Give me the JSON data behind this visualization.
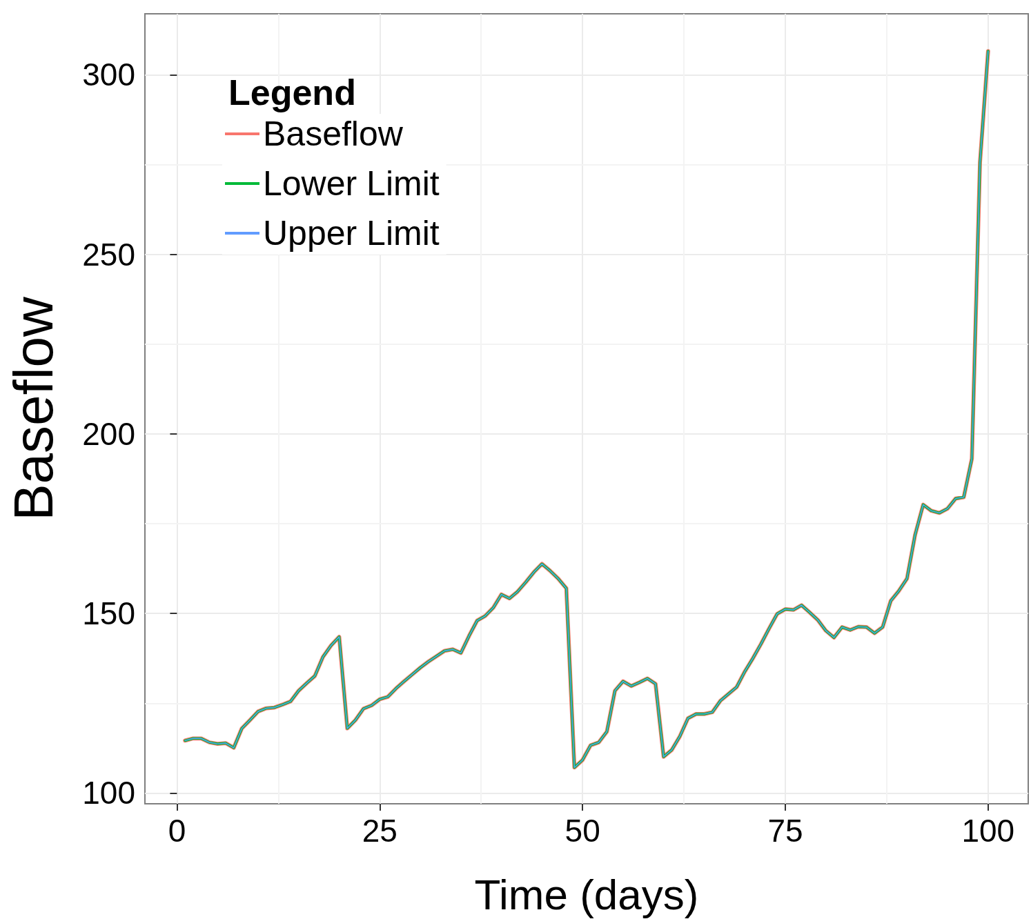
{
  "chart_data": {
    "type": "line",
    "xlabel": "Time (days)",
    "ylabel": "Baseflow",
    "legend_title": "Legend",
    "x": [
      1,
      2,
      3,
      4,
      5,
      6,
      7,
      8,
      9,
      10,
      11,
      12,
      13,
      14,
      15,
      16,
      17,
      18,
      19,
      20,
      21,
      22,
      23,
      24,
      25,
      26,
      27,
      28,
      29,
      30,
      31,
      32,
      33,
      34,
      35,
      36,
      37,
      38,
      39,
      40,
      41,
      42,
      43,
      44,
      45,
      46,
      47,
      48,
      49,
      50,
      51,
      52,
      53,
      54,
      55,
      56,
      57,
      58,
      59,
      60,
      61,
      62,
      63,
      64,
      65,
      66,
      67,
      68,
      69,
      70,
      71,
      72,
      73,
      74,
      75,
      76,
      77,
      78,
      79,
      80,
      81,
      82,
      83,
      84,
      85,
      86,
      87,
      88,
      89,
      90,
      91,
      92,
      93,
      94,
      95,
      96,
      97,
      98,
      99,
      100
    ],
    "series": [
      {
        "name": "Baseflow",
        "color": "#f8766d",
        "values": [
          114.6,
          115.2,
          115.2,
          114.1,
          113.7,
          113.9,
          112.6,
          118.0,
          120.3,
          122.7,
          123.6,
          123.8,
          124.6,
          125.5,
          128.5,
          130.6,
          132.6,
          137.9,
          141.1,
          143.5,
          118.0,
          120.3,
          123.5,
          124.4,
          126.1,
          126.8,
          129.1,
          131.1,
          133.0,
          134.9,
          136.6,
          138.1,
          139.6,
          140.0,
          139.0,
          143.7,
          148.0,
          149.3,
          151.6,
          155.3,
          154.2,
          156.1,
          158.7,
          161.5,
          163.8,
          161.9,
          159.7,
          157.0,
          107.1,
          109.2,
          113.3,
          114.1,
          117.1,
          128.5,
          131.1,
          129.8,
          130.8,
          131.9,
          130.4,
          110.1,
          112.0,
          115.8,
          120.8,
          122.0,
          122.0,
          122.5,
          125.7,
          127.6,
          129.5,
          133.8,
          137.5,
          141.5,
          145.8,
          149.9,
          151.2,
          151.0,
          152.3,
          150.3,
          148.2,
          145.2,
          143.3,
          146.2,
          145.4,
          146.3,
          146.2,
          144.5,
          146.2,
          153.5,
          156.3,
          159.7,
          171.9,
          180.3,
          178.6,
          178.0,
          179.2,
          182.0,
          182.4,
          193.1,
          275.6,
          306.6
        ]
      },
      {
        "name": "Lower Limit",
        "color": "#00ba38",
        "values": [
          114.6,
          115.2,
          115.2,
          114.1,
          113.7,
          113.9,
          112.6,
          118.0,
          120.3,
          122.7,
          123.6,
          123.8,
          124.6,
          125.5,
          128.5,
          130.6,
          132.6,
          137.9,
          141.1,
          143.5,
          118.0,
          120.3,
          123.5,
          124.4,
          126.1,
          126.8,
          129.1,
          131.1,
          133.0,
          134.9,
          136.6,
          138.1,
          139.6,
          140.0,
          139.0,
          143.7,
          148.0,
          149.3,
          151.6,
          155.3,
          154.2,
          156.1,
          158.7,
          161.5,
          163.8,
          161.9,
          159.7,
          157.0,
          107.1,
          109.2,
          113.3,
          114.1,
          117.1,
          128.5,
          131.1,
          129.8,
          130.8,
          131.9,
          130.4,
          110.1,
          112.0,
          115.8,
          120.8,
          122.0,
          122.0,
          122.5,
          125.7,
          127.6,
          129.5,
          133.8,
          137.5,
          141.5,
          145.8,
          149.9,
          151.2,
          151.0,
          152.3,
          150.3,
          148.2,
          145.2,
          143.3,
          146.2,
          145.4,
          146.3,
          146.2,
          144.5,
          146.2,
          153.5,
          156.3,
          159.7,
          171.9,
          180.3,
          178.6,
          178.0,
          179.2,
          182.0,
          182.4,
          193.1,
          275.6,
          306.6
        ]
      },
      {
        "name": "Upper Limit",
        "color": "#619cff",
        "values": [
          114.6,
          115.2,
          115.2,
          114.1,
          113.7,
          113.9,
          112.6,
          118.0,
          120.3,
          122.7,
          123.6,
          123.8,
          124.6,
          125.5,
          128.5,
          130.6,
          132.6,
          137.9,
          141.1,
          143.5,
          118.0,
          120.3,
          123.5,
          124.4,
          126.1,
          126.8,
          129.1,
          131.1,
          133.0,
          134.9,
          136.6,
          138.1,
          139.6,
          140.0,
          139.0,
          143.7,
          148.0,
          149.3,
          151.6,
          155.3,
          154.2,
          156.1,
          158.7,
          161.5,
          163.8,
          161.9,
          159.7,
          157.0,
          107.1,
          109.2,
          113.3,
          114.1,
          117.1,
          128.5,
          131.1,
          129.8,
          130.8,
          131.9,
          130.4,
          110.1,
          112.0,
          115.8,
          120.8,
          122.0,
          122.0,
          122.5,
          125.7,
          127.6,
          129.5,
          133.8,
          137.5,
          141.5,
          145.8,
          149.9,
          151.2,
          151.0,
          152.3,
          150.3,
          148.2,
          145.2,
          143.3,
          146.2,
          145.4,
          146.3,
          146.2,
          144.5,
          146.2,
          153.5,
          156.3,
          159.7,
          171.9,
          180.3,
          178.6,
          178.0,
          179.2,
          182.0,
          182.4,
          193.1,
          275.6,
          306.6
        ]
      }
    ],
    "xlim": [
      -3.95,
      104.95
    ],
    "xticks": [
      0,
      25,
      50,
      75,
      100
    ],
    "ylim": [
      97,
      317
    ],
    "yticks": [
      100,
      150,
      200,
      250,
      300
    ],
    "grid": true,
    "legend": "top left",
    "marker": "none",
    "line_style": "solid"
  }
}
